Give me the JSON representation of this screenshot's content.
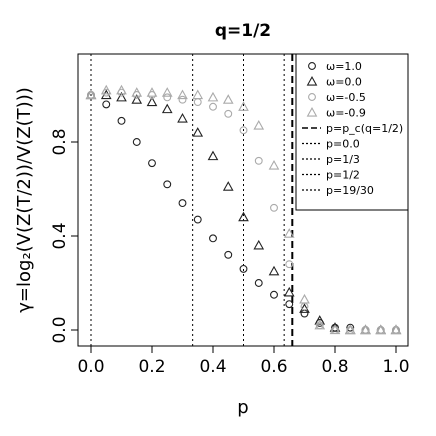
{
  "chart_data": {
    "type": "scatter",
    "title": "q=1/2",
    "xlabel": "p",
    "ylabel": "γ=log₂(V(Z(T/2))/V(Z(T)))",
    "xlim": [
      0,
      1
    ],
    "ylim": [
      -0.1,
      1.05
    ],
    "xticks": [
      "0.0",
      "0.2",
      "0.4",
      "0.6",
      "0.8",
      "1.0"
    ],
    "yticks": [
      "0.0",
      "0.4",
      "0.8"
    ],
    "grid": false,
    "legend_position": "top-right",
    "series": [
      {
        "name": "ω=1.0",
        "marker": "circle",
        "color": "#222222",
        "stroke": 0.8,
        "x": [
          0.0,
          0.05,
          0.1,
          0.15,
          0.2,
          0.25,
          0.3,
          0.35,
          0.4,
          0.45,
          0.5,
          0.55,
          0.6,
          0.65,
          0.7,
          0.75,
          0.8,
          0.85,
          0.9,
          0.95,
          1.0
        ],
        "y": [
          1.0,
          0.96,
          0.89,
          0.8,
          0.71,
          0.62,
          0.54,
          0.47,
          0.39,
          0.32,
          0.26,
          0.2,
          0.15,
          0.11,
          0.07,
          0.03,
          0.01,
          0.01,
          0.0,
          0.0,
          0.0
        ]
      },
      {
        "name": "ω=0.0",
        "marker": "triangle",
        "color": "#222222",
        "stroke": 0.8,
        "x": [
          0.0,
          0.05,
          0.1,
          0.15,
          0.2,
          0.25,
          0.3,
          0.35,
          0.4,
          0.45,
          0.5,
          0.55,
          0.6,
          0.65,
          0.7,
          0.75,
          0.8,
          0.85,
          0.9,
          0.95,
          1.0
        ],
        "y": [
          1.0,
          1.0,
          0.99,
          0.98,
          0.97,
          0.94,
          0.9,
          0.84,
          0.74,
          0.61,
          0.48,
          0.36,
          0.25,
          0.16,
          0.09,
          0.04,
          0.01,
          0.0,
          0.0,
          0.0,
          0.0
        ]
      },
      {
        "name": "ω=-0.5",
        "marker": "circle",
        "color": "#aaaaaa",
        "stroke": 0.8,
        "x": [
          0.0,
          0.05,
          0.1,
          0.15,
          0.2,
          0.25,
          0.3,
          0.35,
          0.4,
          0.45,
          0.5,
          0.55,
          0.6,
          0.65,
          0.7,
          0.75,
          0.8,
          0.85,
          0.9,
          0.95,
          1.0
        ],
        "y": [
          1.0,
          1.01,
          1.01,
          1.0,
          1.0,
          0.99,
          0.98,
          0.97,
          0.95,
          0.92,
          0.85,
          0.72,
          0.52,
          0.28,
          0.1,
          0.02,
          0.0,
          0.0,
          0.0,
          0.0,
          0.0
        ]
      },
      {
        "name": "ω=-0.9",
        "marker": "triangle",
        "color": "#aaaaaa",
        "stroke": 0.8,
        "x": [
          0.0,
          0.05,
          0.1,
          0.15,
          0.2,
          0.25,
          0.3,
          0.35,
          0.4,
          0.45,
          0.5,
          0.55,
          0.6,
          0.65,
          0.7,
          0.75,
          0.8,
          0.85,
          0.9,
          0.95,
          1.0
        ],
        "y": [
          1.0,
          1.02,
          1.02,
          1.01,
          1.01,
          1.01,
          1.0,
          1.0,
          0.99,
          0.98,
          0.95,
          0.87,
          0.7,
          0.41,
          0.13,
          0.02,
          0.0,
          0.0,
          0.0,
          0.0,
          0.0
        ]
      }
    ],
    "vlines": [
      {
        "name": "p=p_c(q=1/2)",
        "x": 0.66,
        "style": "dashed",
        "width": 2
      },
      {
        "name": "p=0.0",
        "x": 0.0,
        "style": "dotted",
        "width": 1
      },
      {
        "name": "p=1/3",
        "x": 0.3333,
        "style": "dotted",
        "width": 1
      },
      {
        "name": "p=1/2",
        "x": 0.5,
        "style": "dotted",
        "width": 1
      },
      {
        "name": "p=19/30",
        "x": 0.6333,
        "style": "dotted",
        "width": 1
      }
    ]
  }
}
